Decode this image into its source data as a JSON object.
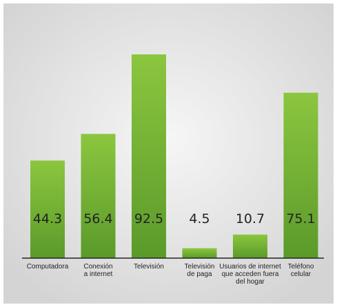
{
  "chart_data": {
    "type": "bar",
    "categories": [
      "Computadora",
      "Conexión\na internet",
      "Televisión",
      "Televisión\nde paga",
      "Usuarios de internet\nque acceden fuera\ndel hogar",
      "Teléfono\ncelular"
    ],
    "values": [
      44.3,
      56.4,
      92.5,
      4.5,
      10.7,
      75.1
    ],
    "value_labels": [
      "44.3",
      "56.4",
      "92.5",
      "4.5",
      "10.7",
      "75.1"
    ],
    "ylim": [
      0,
      100
    ],
    "grid": false,
    "legend": "none",
    "colors": {
      "bar_top": "#8cc63f",
      "bar_bottom": "#5a9a2a",
      "value_text": "#222222",
      "category_text": "#222222",
      "axis": "#222222",
      "background_center": "#f6f6f6",
      "background_edge": "#d4d4d4"
    }
  }
}
